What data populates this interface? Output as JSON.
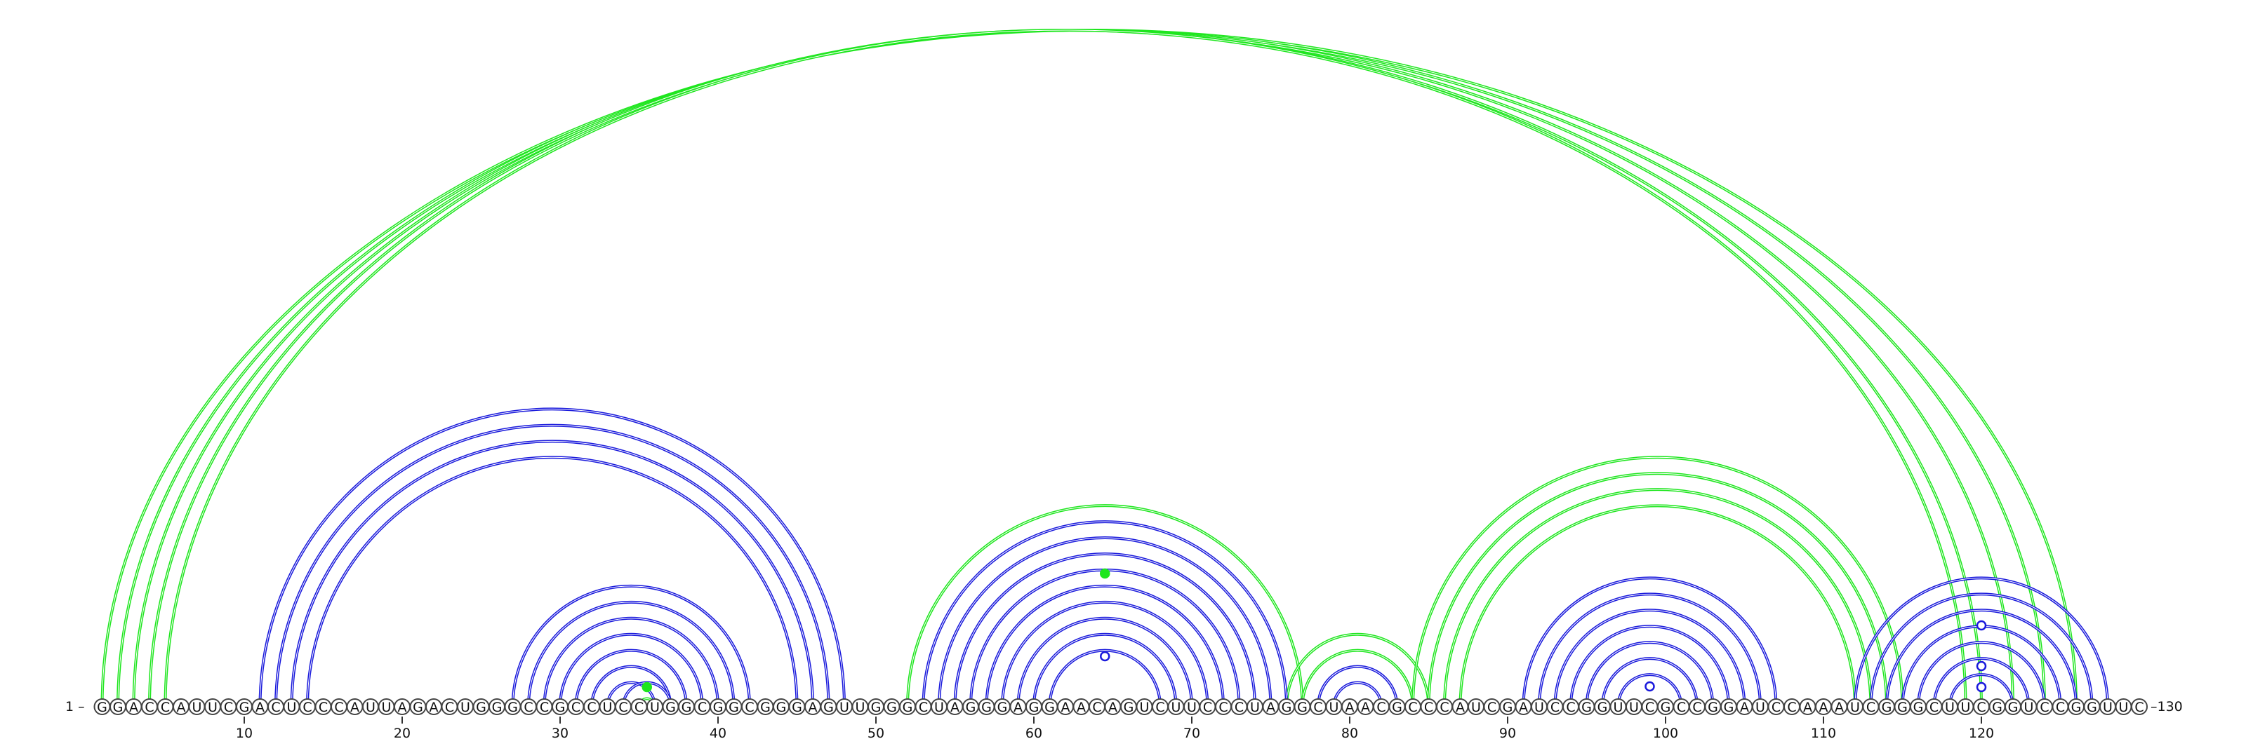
{
  "sequence": {
    "residues": "GGACCAUUCGACUCCCAUUAGACUGGGCCGCCUCCUGGCGGCGGGAGUUGGGCUAGGGAGGAACAGUCUUCCCUAGGCUAACGCCCAUCGAUCCGGUUCGCCGGAUCCAAAUCGGGCUUCGGUCCGGUUC",
    "start_label": "1 –",
    "end_label": "–130",
    "tick_labels": [
      "10",
      "20",
      "30",
      "40",
      "50",
      "60",
      "70",
      "80",
      "90",
      "100",
      "110",
      "120"
    ],
    "tick_positions": [
      10,
      20,
      30,
      40,
      50,
      60,
      70,
      80,
      90,
      100,
      110,
      120
    ]
  },
  "colors": {
    "blue_pairs": "#1a1adc",
    "green_pairs": "#1ee61e",
    "circle_stroke": "#444444"
  },
  "arcs": {
    "green": [
      {
        "i": 1,
        "j": 126
      },
      {
        "i": 2,
        "j": 124
      },
      {
        "i": 3,
        "j": 122
      },
      {
        "i": 4,
        "j": 120
      },
      {
        "i": 5,
        "j": 119
      },
      {
        "i": 35,
        "j": 36
      },
      {
        "i": 52,
        "j": 77
      },
      {
        "i": 77,
        "j": 84
      },
      {
        "i": 76,
        "j": 85
      },
      {
        "i": 84,
        "j": 115
      },
      {
        "i": 85,
        "j": 114
      },
      {
        "i": 86,
        "j": 113
      },
      {
        "i": 87,
        "j": 112
      }
    ],
    "blue": [
      {
        "i": 11,
        "j": 48
      },
      {
        "i": 12,
        "j": 47
      },
      {
        "i": 13,
        "j": 46
      },
      {
        "i": 14,
        "j": 45
      },
      {
        "i": 27,
        "j": 42
      },
      {
        "i": 28,
        "j": 41
      },
      {
        "i": 29,
        "j": 40
      },
      {
        "i": 30,
        "j": 39
      },
      {
        "i": 31,
        "j": 38
      },
      {
        "i": 32,
        "j": 37
      },
      {
        "i": 33,
        "j": 36
      },
      {
        "i": 34,
        "j": 37
      },
      {
        "i": 53,
        "j": 76
      },
      {
        "i": 54,
        "j": 75
      },
      {
        "i": 55,
        "j": 74
      },
      {
        "i": 56,
        "j": 73
      },
      {
        "i": 57,
        "j": 72
      },
      {
        "i": 58,
        "j": 71
      },
      {
        "i": 59,
        "j": 70
      },
      {
        "i": 60,
        "j": 69
      },
      {
        "i": 61,
        "j": 68
      },
      {
        "i": 78,
        "j": 83
      },
      {
        "i": 79,
        "j": 82
      },
      {
        "i": 91,
        "j": 107
      },
      {
        "i": 92,
        "j": 106
      },
      {
        "i": 93,
        "j": 105
      },
      {
        "i": 94,
        "j": 104
      },
      {
        "i": 95,
        "j": 103
      },
      {
        "i": 96,
        "j": 102
      },
      {
        "i": 97,
        "j": 101
      },
      {
        "i": 112,
        "j": 128
      },
      {
        "i": 113,
        "j": 127
      },
      {
        "i": 114,
        "j": 126
      },
      {
        "i": 115,
        "j": 125
      },
      {
        "i": 116,
        "j": 124
      },
      {
        "i": 117,
        "j": 123
      },
      {
        "i": 118,
        "j": 122
      }
    ]
  },
  "markers": [
    {
      "pos": 35.5,
      "color": "green",
      "filled": true,
      "level": "arc-top"
    },
    {
      "pos": 64.5,
      "color": "green",
      "filled": true,
      "level": "arc-top"
    },
    {
      "pos": 64.5,
      "color": "blue",
      "filled": false,
      "level": "arc-top"
    },
    {
      "pos": 99,
      "color": "blue",
      "filled": false,
      "level": "arc-top"
    },
    {
      "pos": 120,
      "color": "blue",
      "filled": false,
      "level": "arc-top"
    }
  ]
}
